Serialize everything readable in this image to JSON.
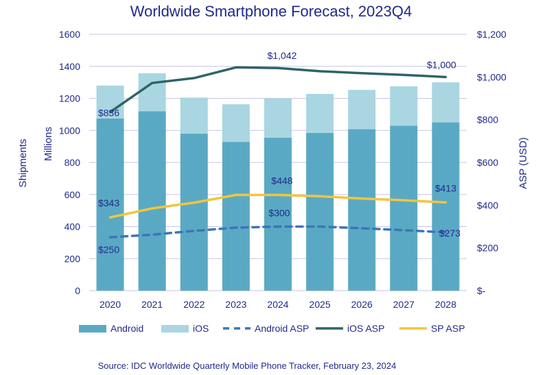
{
  "chart_data": {
    "type": "bar",
    "title": "Worldwide Smartphone Forecast, 2023Q4",
    "categories": [
      "2020",
      "2021",
      "2022",
      "2023",
      "2024",
      "2025",
      "2026",
      "2027",
      "2028"
    ],
    "stacked_series": [
      {
        "name": "Android",
        "color": "#5aa9c4",
        "values": [
          1075,
          1120,
          980,
          928,
          955,
          985,
          1008,
          1030,
          1050
        ]
      },
      {
        "name": "iOS",
        "color": "#a9d6e1",
        "values": [
          205,
          237,
          225,
          235,
          245,
          243,
          245,
          245,
          250
        ]
      }
    ],
    "line_series": [
      {
        "name": "Android ASP",
        "color": "#3d75b8",
        "dash": true,
        "values": [
          250,
          262,
          280,
          295,
          300,
          300,
          292,
          283,
          273
        ]
      },
      {
        "name": "iOS ASP",
        "color": "#2f6468",
        "dash": false,
        "values": [
          836,
          972,
          995,
          1045,
          1042,
          1027,
          1018,
          1010,
          1000
        ]
      },
      {
        "name": "SP ASP",
        "color": "#f2c53d",
        "dash": false,
        "values": [
          343,
          385,
          412,
          448,
          448,
          442,
          431,
          423,
          413
        ]
      }
    ],
    "ylabel_left": "Shipments",
    "ylabel_left_sub": "Millions",
    "ylabel_right": "ASP (USD)",
    "ylim_left": [
      0,
      1600
    ],
    "yticks_left": [
      "0",
      "200",
      "400",
      "600",
      "800",
      "1000",
      "1200",
      "1400",
      "1600"
    ],
    "ylim_right": [
      0,
      1200
    ],
    "yticks_right": [
      "$-",
      "$200",
      "$400",
      "$600",
      "$800",
      "$1,000",
      "$1,200"
    ],
    "data_labels": [
      {
        "series": "iOS ASP",
        "index": 0,
        "text": "$836"
      },
      {
        "series": "iOS ASP",
        "index": 4,
        "text": "$1,042"
      },
      {
        "series": "iOS ASP",
        "index": 8,
        "text": "$1,000"
      },
      {
        "series": "SP ASP",
        "index": 0,
        "text": "$343"
      },
      {
        "series": "SP ASP",
        "index": 4,
        "text": "$448"
      },
      {
        "series": "SP ASP",
        "index": 8,
        "text": "$413"
      },
      {
        "series": "Android ASP",
        "index": 0,
        "text": "$250"
      },
      {
        "series": "Android ASP",
        "index": 4,
        "text": "$300"
      },
      {
        "series": "Android ASP",
        "index": 8,
        "text": "$273"
      }
    ],
    "legend": [
      "Android",
      "iOS",
      "Android ASP",
      "iOS ASP",
      "SP ASP"
    ],
    "legend_position": "bottom",
    "grid": true
  },
  "source": "Source:  IDC Worldwide Quarterly Mobile Phone Tracker, February 23, 2024"
}
